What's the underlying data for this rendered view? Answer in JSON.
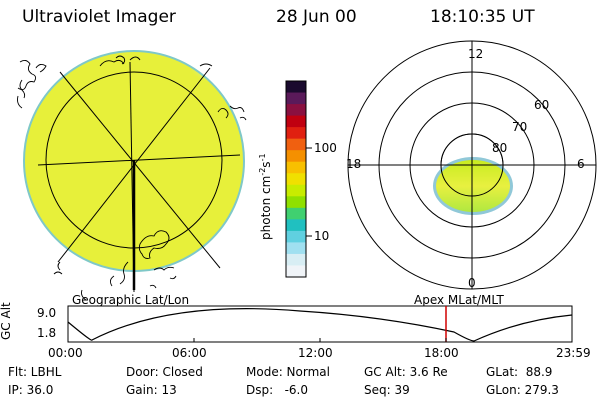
{
  "header": {
    "instrument": "Ultraviolet Imager",
    "date": "28 Jun 00",
    "time": "18:10:35 UT"
  },
  "colorbar": {
    "unit_label": "photon cm",
    "unit_exp1": "-2",
    "unit_mid": "s",
    "unit_exp2": "-1",
    "tick_high": "100",
    "tick_low": "10",
    "colors": [
      "#1a0a2e",
      "#5a1a5a",
      "#8a1040",
      "#c00010",
      "#e02010",
      "#f06010",
      "#f59000",
      "#f8c000",
      "#f0e000",
      "#c8ec00",
      "#90e000",
      "#40d070",
      "#20c0c0",
      "#60d0e0",
      "#a0e0f0",
      "#d8eef4",
      "#f0f4f8"
    ]
  },
  "left_panel": {
    "label": "Geographic Lat/Lon",
    "fill_color": "#e7f03a"
  },
  "right_panel": {
    "label": "Apex MLat/MLT",
    "mlt_12": "12",
    "mlt_18": "18",
    "mlt_6": "6",
    "mlt_0": "0",
    "lat_60": "60",
    "lat_70": "70",
    "lat_80": "80"
  },
  "altitude_plot": {
    "ylabel": "GC Alt",
    "ytick_high": "9.0",
    "ytick_low": "1.8",
    "xticks": [
      "00:00",
      "06:00",
      "12:00",
      "18:00",
      "23:59"
    ],
    "current_marker_color": "#d00000"
  },
  "status": {
    "flt": "Flt: LBHL",
    "door": "Door: Closed",
    "mode": "Mode: Normal",
    "gc_alt": "GC Alt: 3.6 Re",
    "glat": "GLat:  88.9",
    "ip": "IP: 36.0",
    "gain": "Gain: 13",
    "dsp": "Dsp:   -6.0",
    "seq": "Seq: 39",
    "glon": "GLon: 279.3"
  }
}
